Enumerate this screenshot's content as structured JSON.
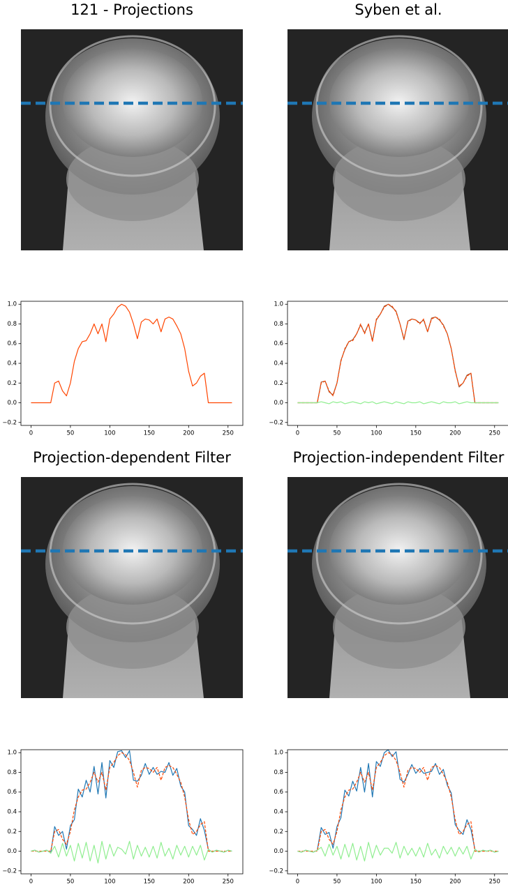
{
  "chart_data": [
    {
      "type": "line",
      "title": "121 - Projections",
      "x": [
        0,
        5,
        10,
        15,
        20,
        25,
        30,
        35,
        40,
        45,
        50,
        55,
        60,
        65,
        70,
        75,
        80,
        85,
        90,
        95,
        100,
        105,
        110,
        115,
        120,
        125,
        130,
        135,
        140,
        145,
        150,
        155,
        160,
        165,
        170,
        175,
        180,
        185,
        190,
        195,
        200,
        205,
        210,
        215,
        220,
        225,
        230,
        235,
        240,
        245,
        250,
        255
      ],
      "series": [
        {
          "color": "#ff4500",
          "linestyle": "solid",
          "values": [
            0,
            0,
            0,
            0,
            0,
            0,
            0.2,
            0.22,
            0.12,
            0.07,
            0.2,
            0.42,
            0.55,
            0.62,
            0.63,
            0.7,
            0.8,
            0.7,
            0.8,
            0.62,
            0.85,
            0.9,
            0.97,
            1.0,
            0.98,
            0.92,
            0.8,
            0.65,
            0.82,
            0.85,
            0.84,
            0.8,
            0.85,
            0.72,
            0.85,
            0.87,
            0.85,
            0.78,
            0.7,
            0.55,
            0.32,
            0.17,
            0.2,
            0.27,
            0.3,
            0,
            0,
            0,
            0,
            0,
            0,
            0
          ]
        }
      ],
      "xlim": [
        -12.8,
        268.8
      ],
      "ylim": [
        -0.23,
        1.03
      ],
      "xticks": [
        0,
        50,
        100,
        150,
        200,
        250
      ],
      "yticks": [
        {
          "value": -0.2,
          "label": "−0.2"
        },
        {
          "value": 0,
          "label": "0.0"
        },
        0.2,
        0.4,
        0.6,
        0.8,
        {
          "value": 1,
          "label": "1.0"
        }
      ]
    },
    {
      "type": "line",
      "title": "Syben et al.",
      "x": [
        0,
        5,
        10,
        15,
        20,
        25,
        30,
        35,
        40,
        45,
        50,
        55,
        60,
        65,
        70,
        75,
        80,
        85,
        90,
        95,
        100,
        105,
        110,
        115,
        120,
        125,
        130,
        135,
        140,
        145,
        150,
        155,
        160,
        165,
        170,
        175,
        180,
        185,
        190,
        195,
        200,
        205,
        210,
        215,
        220,
        225,
        230,
        235,
        240,
        245,
        250,
        255
      ],
      "series": [
        {
          "color": "#a0522d",
          "linestyle": "solid",
          "values": [
            0,
            0,
            0,
            0,
            0,
            0,
            0.21,
            0.22,
            0.11,
            0.08,
            0.2,
            0.43,
            0.54,
            0.62,
            0.64,
            0.7,
            0.79,
            0.71,
            0.8,
            0.63,
            0.84,
            0.9,
            0.98,
            1.0,
            0.97,
            0.93,
            0.8,
            0.64,
            0.83,
            0.85,
            0.84,
            0.81,
            0.84,
            0.72,
            0.86,
            0.87,
            0.84,
            0.79,
            0.7,
            0.55,
            0.33,
            0.16,
            0.2,
            0.28,
            0.3,
            0,
            0,
            0,
            0,
            0,
            0,
            0
          ]
        },
        {
          "color": "#ff4500",
          "linestyle": "dashed",
          "values": [
            0,
            0,
            0,
            0,
            0,
            0,
            0.2,
            0.22,
            0.12,
            0.07,
            0.2,
            0.42,
            0.55,
            0.62,
            0.63,
            0.7,
            0.8,
            0.7,
            0.8,
            0.62,
            0.85,
            0.9,
            0.97,
            1.0,
            0.98,
            0.92,
            0.8,
            0.65,
            0.82,
            0.85,
            0.84,
            0.8,
            0.85,
            0.72,
            0.85,
            0.87,
            0.85,
            0.78,
            0.7,
            0.55,
            0.32,
            0.17,
            0.2,
            0.27,
            0.3,
            0,
            0,
            0,
            0,
            0,
            0,
            0
          ]
        },
        {
          "color": "#90ee90",
          "linestyle": "solid",
          "values": [
            0,
            0,
            0,
            0,
            0,
            0,
            0.01,
            0,
            -0.01,
            0.01,
            0,
            0.01,
            -0.01,
            0,
            0.01,
            0,
            -0.01,
            0.01,
            0,
            0.01,
            -0.01,
            0,
            0.01,
            0,
            -0.01,
            0.01,
            0,
            -0.01,
            0.01,
            0,
            0,
            0.01,
            -0.01,
            0,
            0.01,
            0,
            -0.01,
            0.01,
            0,
            0,
            0.01,
            -0.01,
            0,
            0.01,
            0,
            0,
            0,
            0,
            0,
            0,
            0,
            0
          ]
        }
      ],
      "xlim": [
        -12.8,
        268.8
      ],
      "ylim": [
        -0.23,
        1.03
      ],
      "xticks": [
        0,
        50,
        100,
        150,
        200,
        250
      ],
      "yticks": [
        {
          "value": -0.2,
          "label": "−0.2"
        },
        {
          "value": 0,
          "label": "0.0"
        },
        0.2,
        0.4,
        0.6,
        0.8,
        {
          "value": 1,
          "label": "1.0"
        }
      ]
    },
    {
      "type": "line",
      "title": "Projection-dependent Filter",
      "x": [
        0,
        5,
        10,
        15,
        20,
        25,
        30,
        35,
        40,
        45,
        50,
        55,
        60,
        65,
        70,
        75,
        80,
        85,
        90,
        95,
        100,
        105,
        110,
        115,
        120,
        125,
        130,
        135,
        140,
        145,
        150,
        155,
        160,
        165,
        170,
        175,
        180,
        185,
        190,
        195,
        200,
        205,
        210,
        215,
        220,
        225,
        230,
        235,
        240,
        245,
        250,
        255
      ],
      "series": [
        {
          "color": "#1f77b4",
          "linestyle": "solid",
          "values": [
            0,
            0.01,
            -0.01,
            0,
            0.01,
            -0.02,
            0.25,
            0.16,
            0.2,
            0.02,
            0.26,
            0.32,
            0.63,
            0.55,
            0.72,
            0.6,
            0.86,
            0.58,
            0.9,
            0.54,
            0.92,
            0.85,
            1.01,
            1.02,
            0.95,
            1.02,
            0.72,
            0.71,
            0.77,
            0.89,
            0.78,
            0.85,
            0.78,
            0.81,
            0.8,
            0.9,
            0.77,
            0.84,
            0.66,
            0.6,
            0.26,
            0.22,
            0.16,
            0.33,
            0.21,
            0.02,
            -0.01,
            0.01,
            0,
            -0.01,
            0.01,
            0
          ]
        },
        {
          "color": "#ff4500",
          "linestyle": "dashed",
          "values": [
            0,
            0,
            0,
            0,
            0,
            0,
            0.2,
            0.22,
            0.12,
            0.07,
            0.2,
            0.42,
            0.55,
            0.62,
            0.63,
            0.7,
            0.8,
            0.7,
            0.8,
            0.62,
            0.85,
            0.9,
            0.97,
            1.0,
            0.98,
            0.92,
            0.8,
            0.65,
            0.82,
            0.85,
            0.84,
            0.8,
            0.85,
            0.72,
            0.85,
            0.87,
            0.85,
            0.78,
            0.7,
            0.55,
            0.32,
            0.17,
            0.2,
            0.27,
            0.3,
            0,
            0,
            0,
            0,
            0,
            0,
            0
          ]
        },
        {
          "color": "#90ee90",
          "linestyle": "solid",
          "values": [
            0,
            0.01,
            -0.01,
            0,
            0.01,
            -0.02,
            0.05,
            -0.06,
            0.08,
            -0.05,
            0.06,
            -0.1,
            0.08,
            -0.07,
            0.09,
            -0.1,
            0.06,
            -0.12,
            0.1,
            -0.08,
            0.07,
            -0.05,
            0.04,
            0.02,
            -0.03,
            0.1,
            -0.08,
            0.06,
            -0.05,
            0.04,
            -0.06,
            0.05,
            -0.07,
            0.09,
            -0.05,
            0.03,
            -0.08,
            0.06,
            -0.04,
            0.05,
            -0.06,
            0.05,
            -0.04,
            0.06,
            -0.09,
            0.02,
            -0.01,
            0.01,
            0,
            -0.01,
            0.01,
            0
          ]
        }
      ],
      "xlim": [
        -12.8,
        268.8
      ],
      "ylim": [
        -0.23,
        1.03
      ],
      "xticks": [
        0,
        50,
        100,
        150,
        200,
        250
      ],
      "yticks": [
        {
          "value": -0.2,
          "label": "−0.2"
        },
        {
          "value": 0,
          "label": "0.0"
        },
        0.2,
        0.4,
        0.6,
        0.8,
        {
          "value": 1,
          "label": "1.0"
        }
      ]
    },
    {
      "type": "line",
      "title": "Projection-independent Filter",
      "x": [
        0,
        5,
        10,
        15,
        20,
        25,
        30,
        35,
        40,
        45,
        50,
        55,
        60,
        65,
        70,
        75,
        80,
        85,
        90,
        95,
        100,
        105,
        110,
        115,
        120,
        125,
        130,
        135,
        140,
        145,
        150,
        155,
        160,
        165,
        170,
        175,
        180,
        185,
        190,
        195,
        200,
        205,
        210,
        215,
        220,
        225,
        230,
        235,
        240,
        245,
        250,
        255
      ],
      "series": [
        {
          "color": "#1f77b4",
          "linestyle": "solid",
          "values": [
            0,
            -0.01,
            0.01,
            0,
            -0.01,
            0.01,
            0.24,
            0.17,
            0.19,
            0.03,
            0.25,
            0.34,
            0.62,
            0.56,
            0.71,
            0.61,
            0.85,
            0.6,
            0.89,
            0.55,
            0.91,
            0.86,
            1.0,
            1.03,
            0.96,
            1.01,
            0.73,
            0.7,
            0.78,
            0.88,
            0.79,
            0.84,
            0.79,
            0.8,
            0.81,
            0.89,
            0.78,
            0.83,
            0.67,
            0.59,
            0.27,
            0.21,
            0.17,
            0.32,
            0.22,
            0.02,
            -0.01,
            0.01,
            0,
            0.01,
            -0.01,
            0
          ]
        },
        {
          "color": "#ff4500",
          "linestyle": "dashed",
          "values": [
            0,
            0,
            0,
            0,
            0,
            0,
            0.2,
            0.22,
            0.12,
            0.07,
            0.2,
            0.42,
            0.55,
            0.62,
            0.63,
            0.7,
            0.8,
            0.7,
            0.8,
            0.62,
            0.85,
            0.9,
            0.97,
            1.0,
            0.98,
            0.92,
            0.8,
            0.65,
            0.82,
            0.85,
            0.84,
            0.8,
            0.85,
            0.72,
            0.85,
            0.87,
            0.85,
            0.78,
            0.7,
            0.55,
            0.32,
            0.17,
            0.2,
            0.27,
            0.3,
            0,
            0,
            0,
            0,
            0,
            0,
            0
          ]
        },
        {
          "color": "#90ee90",
          "linestyle": "solid",
          "values": [
            0,
            -0.01,
            0.01,
            0,
            -0.01,
            0.01,
            0.04,
            -0.05,
            0.07,
            -0.04,
            0.05,
            -0.08,
            0.07,
            -0.06,
            0.08,
            -0.09,
            0.05,
            -0.1,
            0.09,
            -0.07,
            0.06,
            -0.04,
            0.03,
            0.03,
            -0.02,
            0.09,
            -0.07,
            0.05,
            -0.04,
            0.03,
            -0.05,
            0.04,
            -0.06,
            0.08,
            -0.04,
            0.02,
            -0.07,
            0.05,
            -0.03,
            0.04,
            -0.05,
            0.04,
            -0.03,
            0.05,
            -0.08,
            0.02,
            -0.01,
            0.01,
            0,
            0.01,
            -0.01,
            0
          ]
        }
      ],
      "xlim": [
        -12.8,
        268.8
      ],
      "ylim": [
        -0.23,
        1.03
      ],
      "xticks": [
        0,
        50,
        100,
        150,
        200,
        250
      ],
      "yticks": [
        {
          "value": -0.2,
          "label": "−0.2"
        },
        {
          "value": 0,
          "label": "0.0"
        },
        0.2,
        0.4,
        0.6,
        0.8,
        {
          "value": 1,
          "label": "1.0"
        }
      ]
    }
  ]
}
